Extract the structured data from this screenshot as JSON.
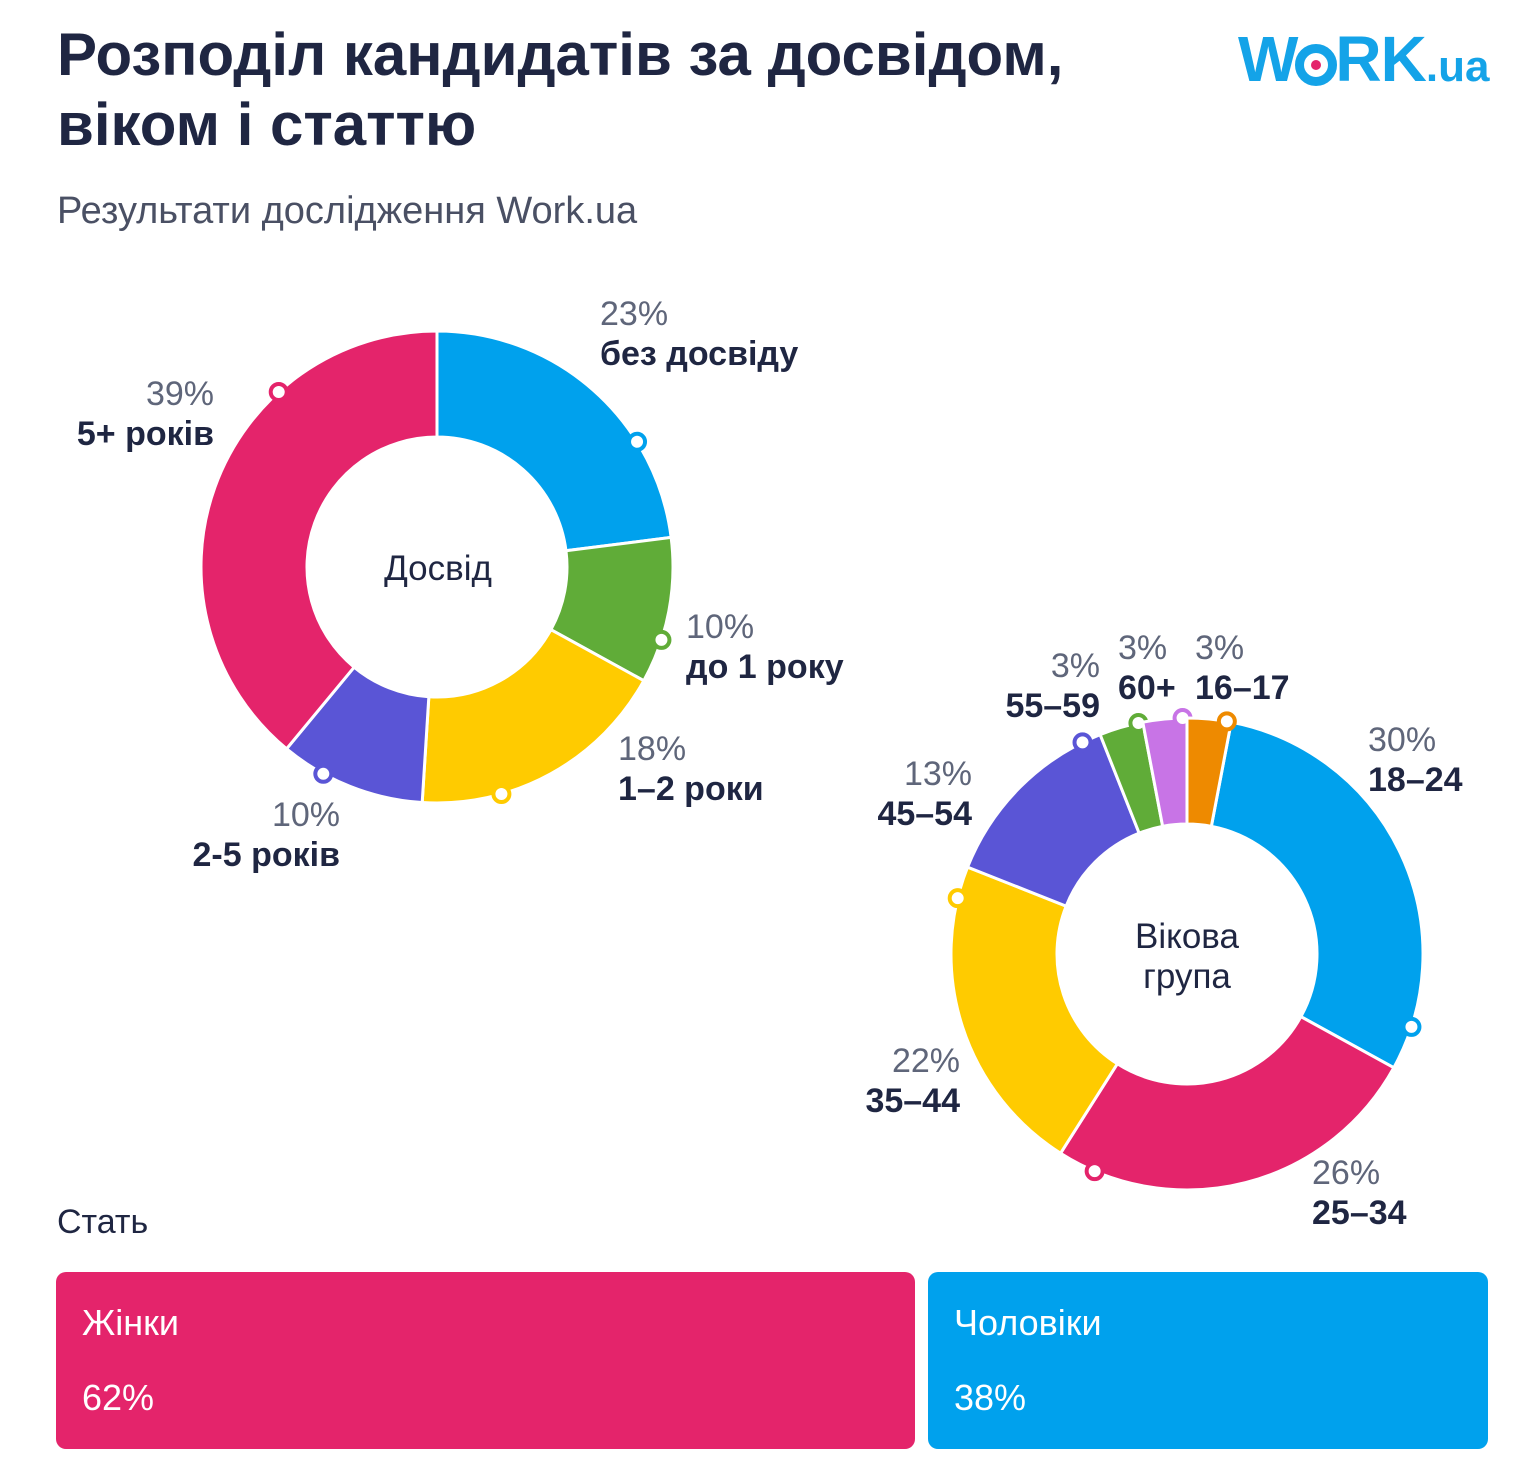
{
  "header": {
    "title_line1": "Розподіл кандидатів за досвідом,",
    "title_line2": "віком і статтю",
    "subtitle": "Результати дослідження Work.ua",
    "logo_main": "W",
    "logo_rest": "RK",
    "logo_suffix": ".ua"
  },
  "chart_data": [
    {
      "type": "pie",
      "center_label": "Досвід",
      "categories": [
        "без досвіду",
        "до 1 року",
        "1–2 роки",
        "2-5 років",
        "5+ років"
      ],
      "value_labels": [
        "23%",
        "10%",
        "18%",
        "10%",
        "39%"
      ],
      "values": [
        23,
        10,
        18,
        10,
        39
      ],
      "colors": [
        "#00a1ed",
        "#60ac38",
        "#ffcb00",
        "#5a55d6",
        "#e4246b"
      ]
    },
    {
      "type": "pie",
      "center_label_lines": [
        "Вікова",
        "група"
      ],
      "categories": [
        "18–24",
        "25–34",
        "35–44",
        "45–54",
        "55–59",
        "60+",
        "16–17"
      ],
      "value_labels": [
        "30%",
        "26%",
        "22%",
        "13%",
        "3%",
        "3%",
        "3%"
      ],
      "values": [
        30,
        26,
        22,
        13,
        3,
        3,
        3
      ],
      "colors": [
        "#00a1ed",
        "#e4246b",
        "#ffcb00",
        "#5a55d6",
        "#60ac38",
        "#c874e6",
        "#ee8a00"
      ]
    },
    {
      "type": "bar",
      "title": "Стать",
      "categories": [
        "Жінки",
        "Чоловіки"
      ],
      "value_labels": [
        "62%",
        "38%"
      ],
      "values": [
        62,
        38
      ],
      "colors": [
        "#e4246b",
        "#00a1ed"
      ]
    }
  ]
}
